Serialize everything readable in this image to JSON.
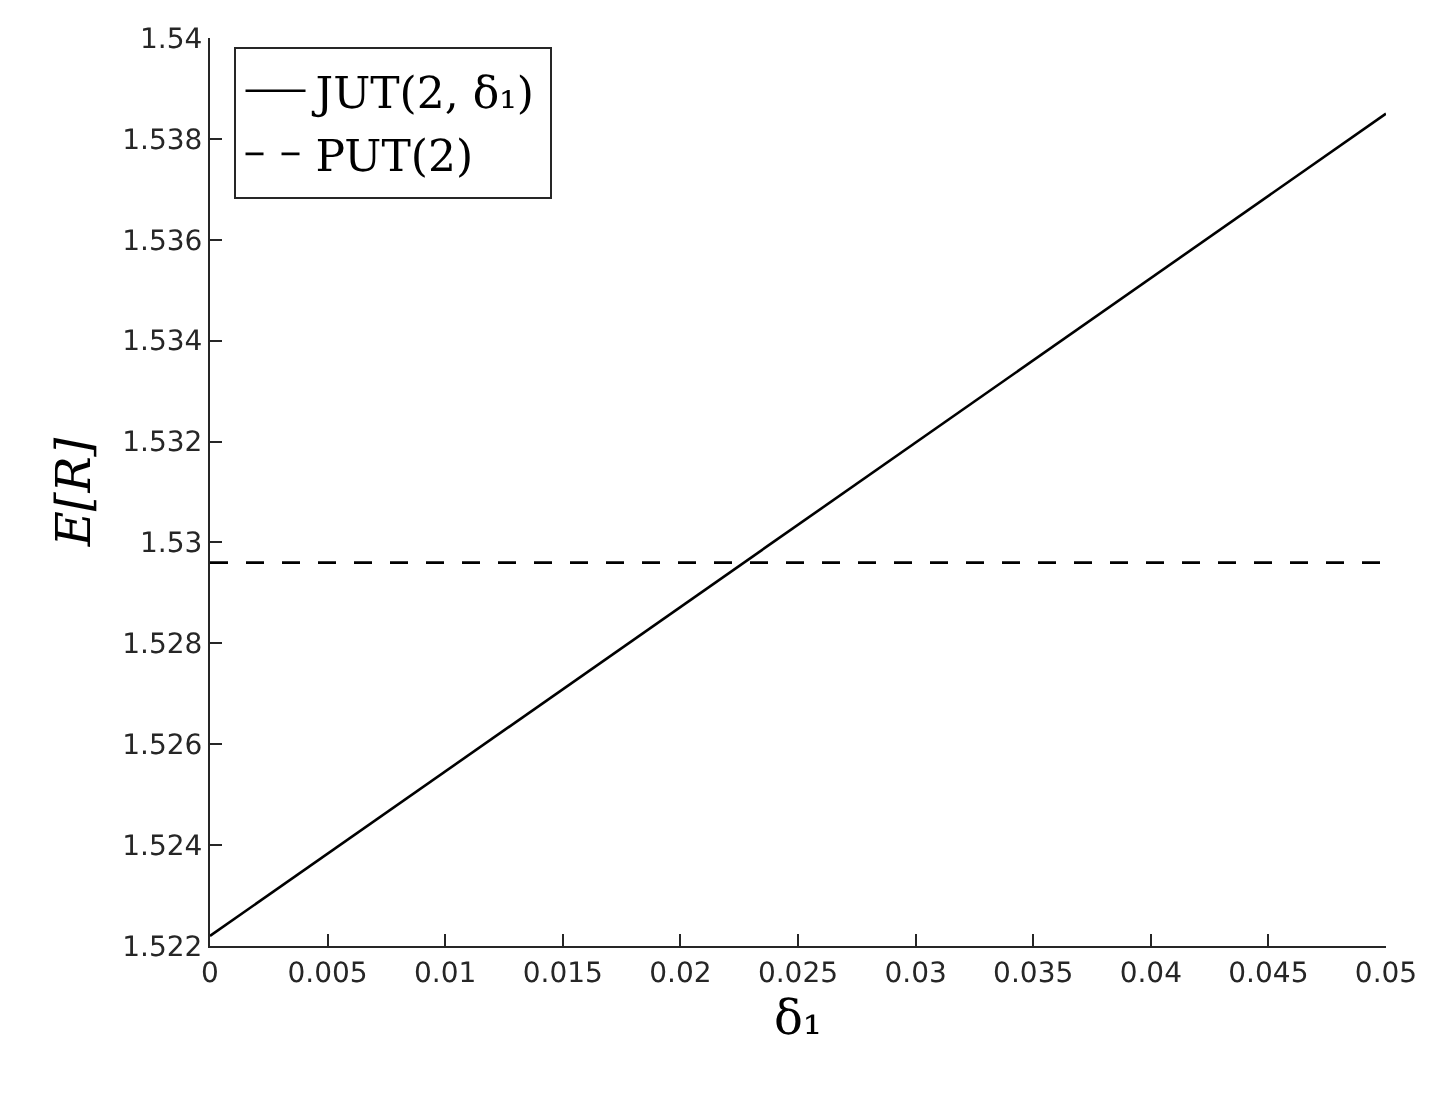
{
  "chart_data": {
    "type": "line",
    "xlabel": "δ₁",
    "ylabel": "E[R]",
    "x": [
      0,
      0.05
    ],
    "xlim": [
      0,
      0.05
    ],
    "xticks": [
      0,
      0.005,
      0.01,
      0.015,
      0.02,
      0.025,
      0.03,
      0.035,
      0.04,
      0.045,
      0.05
    ],
    "ylim": [
      1.522,
      1.54
    ],
    "yticks": [
      1.522,
      1.524,
      1.526,
      1.528,
      1.53,
      1.532,
      1.534,
      1.536,
      1.538,
      1.54
    ],
    "legend": "top left",
    "marker": "none",
    "series": [
      {
        "name": "JUT(2, δ₁)",
        "color": "#000000",
        "values": [
          1.5222,
          1.5385
        ],
        "line_style": "solid"
      },
      {
        "name": "PUT(2)",
        "color": "#000000",
        "values": [
          1.5296,
          1.5296
        ],
        "line_style": "dashed"
      }
    ]
  }
}
